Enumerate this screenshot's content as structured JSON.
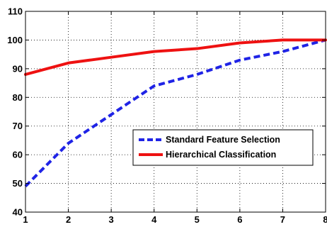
{
  "chart_data": {
    "type": "line",
    "title": "",
    "xlabel": "",
    "ylabel": "",
    "x": [
      1,
      2,
      3,
      4,
      5,
      6,
      7,
      8
    ],
    "xlim": [
      1,
      8
    ],
    "ylim": [
      40,
      110
    ],
    "xticks": [
      1,
      2,
      3,
      4,
      5,
      6,
      7,
      8
    ],
    "yticks": [
      40,
      50,
      60,
      70,
      80,
      90,
      100,
      110
    ],
    "grid": true,
    "legend_position": "lower-right",
    "series": [
      {
        "name": "Standard Feature Selection",
        "values": [
          49,
          64,
          74,
          84,
          88,
          93,
          96,
          100
        ],
        "color": "#1f23e6",
        "line_style": "dashed"
      },
      {
        "name": "Hierarchical Classification",
        "values": [
          88,
          92,
          94,
          96,
          97,
          99,
          100,
          100
        ],
        "color": "#ee1111",
        "line_style": "solid"
      }
    ]
  }
}
